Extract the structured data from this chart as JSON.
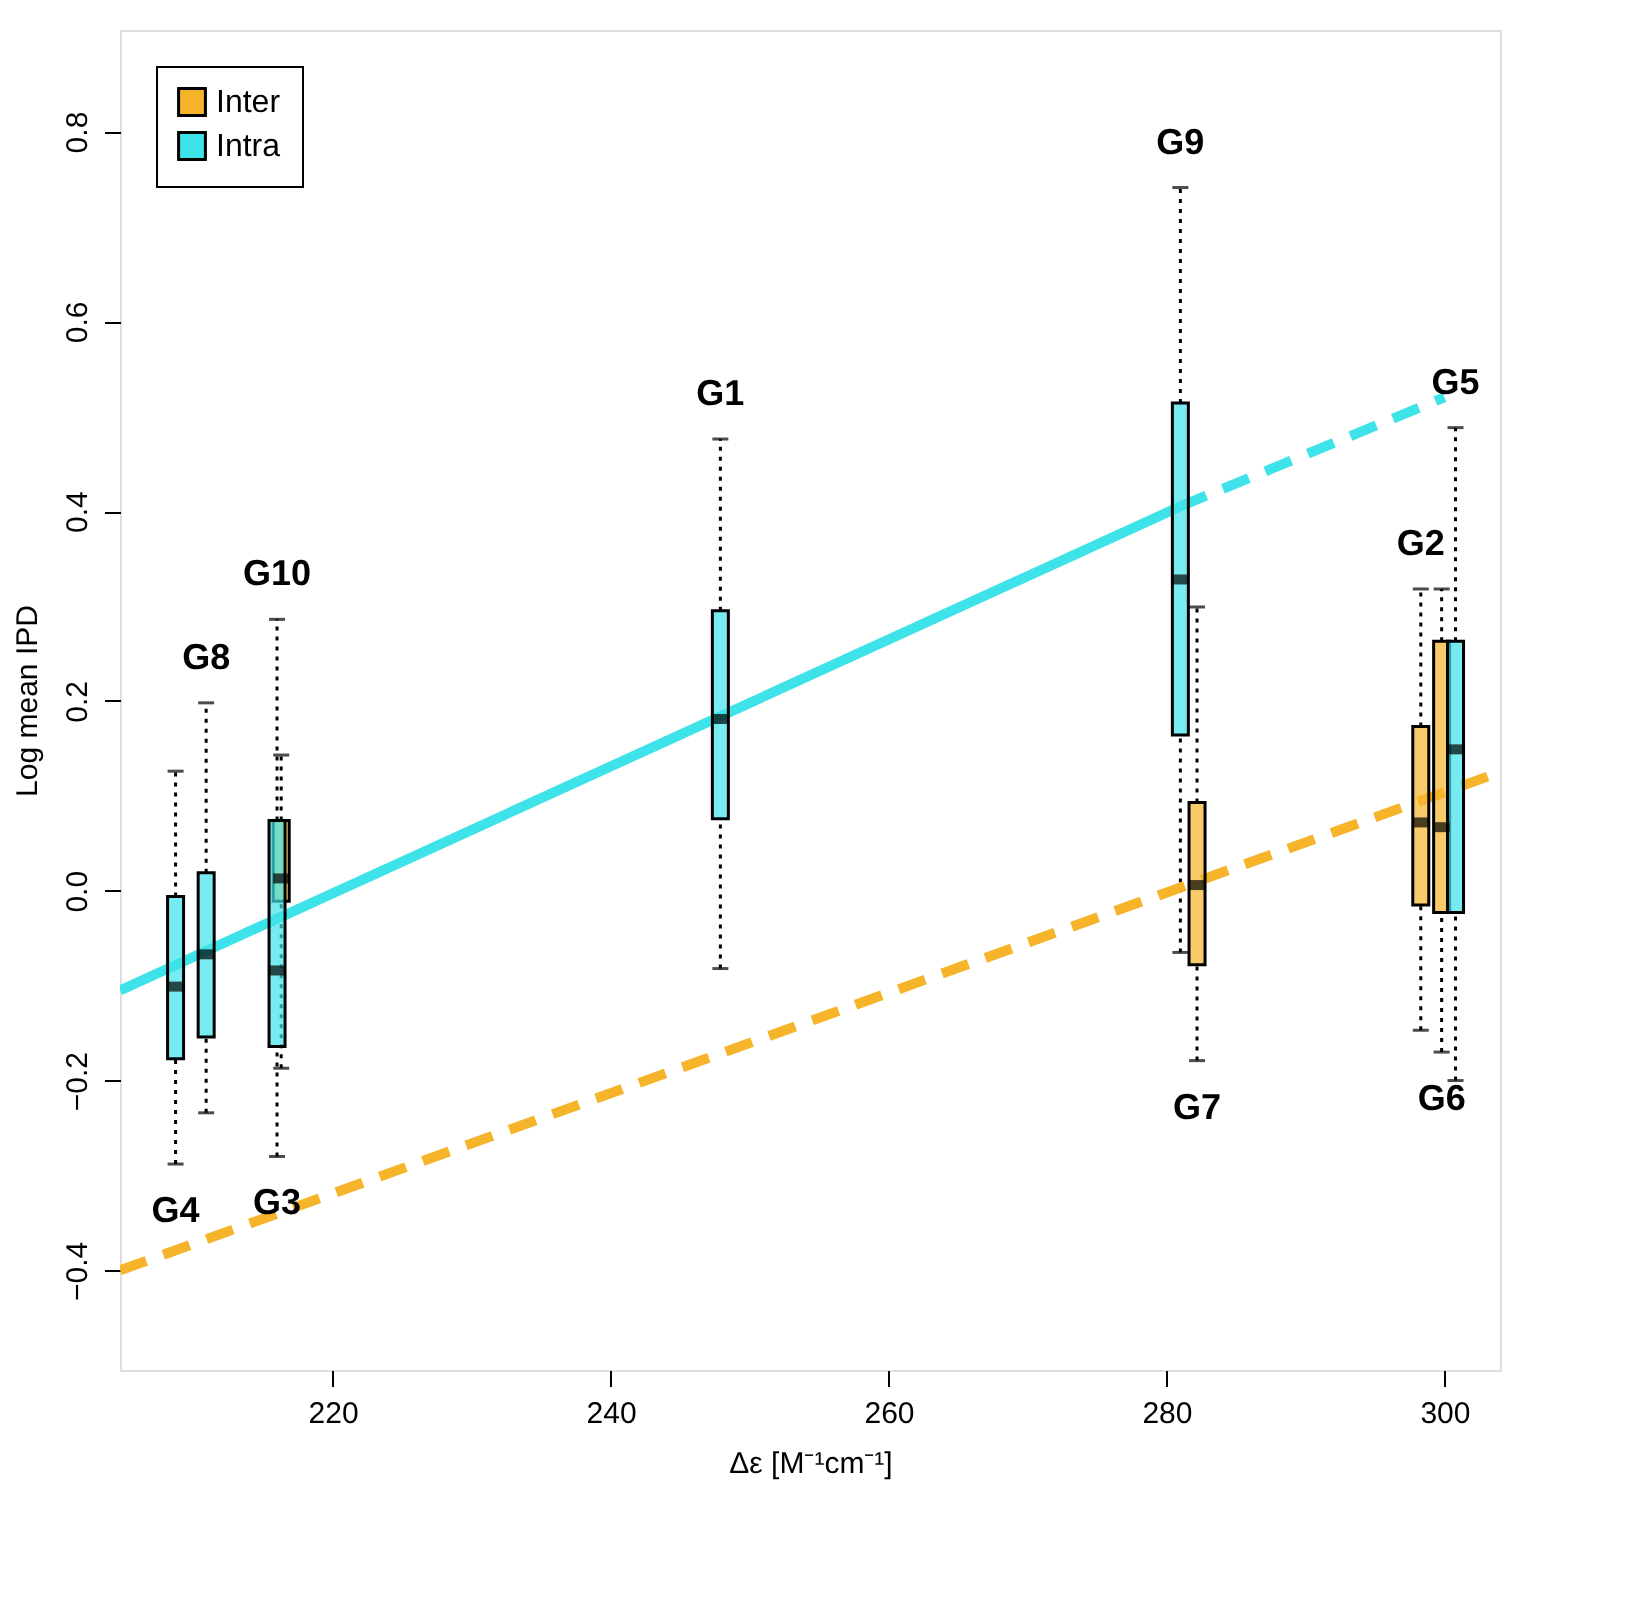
{
  "chart_data": {
    "type": "box",
    "xlabel": "Δε [M⁻¹cm⁻¹]",
    "ylabel": "Log mean IPD",
    "xlim": [
      204.7,
      304
    ],
    "xticks": [
      220,
      240,
      260,
      280,
      300
    ],
    "ylim": [
      -0.505,
      0.907
    ],
    "yticks": [
      -0.4,
      -0.2,
      {
        "value": 0,
        "label": "0.0"
      },
      0.2,
      0.4,
      0.6,
      0.8
    ],
    "grid": false,
    "legend": "top left",
    "series": [
      {
        "name": "Inter",
        "color": "#f5b42a",
        "type": "box",
        "x": [
          216.3,
          282.2,
          298.3,
          299.8
        ],
        "boxes": [
          {
            "low": -0.187,
            "q1": -0.011,
            "median": 0.013,
            "q3": 0.074,
            "high": 0.143
          },
          {
            "low": -0.179,
            "q1": -0.078,
            "median": 0.006,
            "q3": 0.093,
            "high": 0.299
          },
          {
            "low": -0.147,
            "q1": -0.015,
            "median": 0.072,
            "q3": 0.173,
            "high": 0.318
          },
          {
            "low": -0.17,
            "q1": -0.023,
            "median": 0.067,
            "q3": 0.263,
            "high": 0.318
          }
        ]
      },
      {
        "name": "Intra",
        "color": "#3ee3ea",
        "type": "box",
        "x": [
          208.7,
          210.9,
          216.0,
          247.9,
          281.0,
          300.8
        ],
        "boxes": [
          {
            "low": -0.288,
            "q1": -0.177,
            "median": -0.101,
            "q3": -0.006,
            "high": 0.126
          },
          {
            "low": -0.234,
            "q1": -0.154,
            "median": -0.067,
            "q3": 0.019,
            "high": 0.198
          },
          {
            "low": -0.28,
            "q1": -0.164,
            "median": -0.084,
            "q3": 0.074,
            "high": 0.286
          },
          {
            "low": -0.082,
            "q1": 0.076,
            "median": 0.181,
            "q3": 0.295,
            "high": 0.476
          },
          {
            "low": -0.065,
            "q1": 0.164,
            "median": 0.328,
            "q3": 0.514,
            "high": 0.741
          },
          {
            "low": -0.2,
            "q1": -0.023,
            "median": 0.149,
            "q3": 0.263,
            "high": 0.488
          }
        ]
      },
      {
        "color": "#3ee3ea",
        "type": "line",
        "line_style": "solid",
        "x": [
          204.7,
          281
        ],
        "values": [
          -0.105,
          0.405
        ]
      },
      {
        "color": "#3ee3ea",
        "type": "line",
        "line_style": "dashed",
        "x": [
          281,
          300
        ],
        "values": [
          0.405,
          0.52
        ]
      },
      {
        "color": "#f5b42a",
        "type": "line",
        "line_style": "dashed",
        "x": [
          204.7,
          304
        ],
        "values": [
          -0.4,
          0.125
        ]
      }
    ],
    "annotations": [
      {
        "text": "G4",
        "x": 208.7,
        "y": -0.288
      },
      {
        "text": "G8",
        "x": 210.9,
        "y": 0.198
      },
      {
        "text": "G10",
        "x": 216.0,
        "y": 0.286
      },
      {
        "text": "G3",
        "x": 216.0,
        "y": -0.28
      },
      {
        "text": "G1",
        "x": 247.9,
        "y": 0.476
      },
      {
        "text": "G9",
        "x": 281.0,
        "y": 0.741
      },
      {
        "text": "G7",
        "x": 282.2,
        "y": -0.179
      },
      {
        "text": "G2",
        "x": 298.3,
        "y": 0.318
      },
      {
        "text": "G5",
        "x": 300.8,
        "y": 0.488
      },
      {
        "text": "G6",
        "x": 299.8,
        "y": -0.17
      }
    ]
  }
}
